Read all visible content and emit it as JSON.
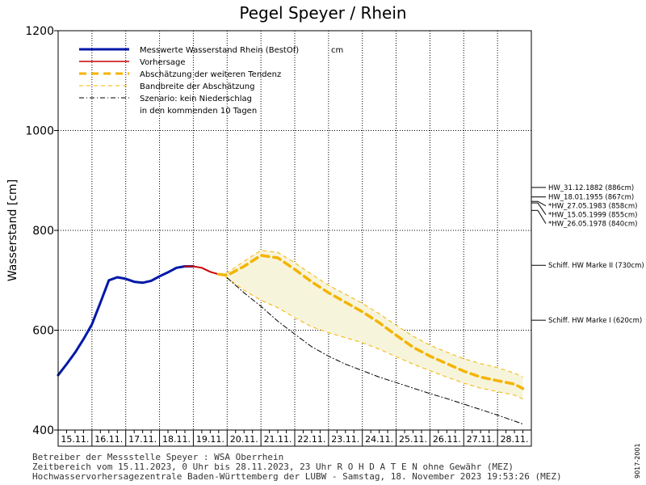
{
  "chart_data": {
    "type": "line",
    "title": "Pegel Speyer / Rhein",
    "ylabel": "Wasserstand [cm]",
    "xlabel": "",
    "ylim": [
      400,
      1200
    ],
    "xlim": [
      0,
      14
    ],
    "yticks": [
      400,
      600,
      800,
      1000,
      1200
    ],
    "grid": true,
    "legend_position": "top-left",
    "categories": [
      "15.11.",
      "16.11.",
      "17.11.",
      "18.11.",
      "19.11.",
      "20.11.",
      "21.11.",
      "22.11.",
      "23.11.",
      "24.11.",
      "25.11.",
      "26.11.",
      "27.11.",
      "28.11."
    ],
    "legend": [
      {
        "label": "Messwerte Wasserstand Rhein (BestOf)",
        "unit": "cm",
        "color": "#0018a8",
        "style": "thick"
      },
      {
        "label": "Vorhersage",
        "color": "#cc0000",
        "style": "solid"
      },
      {
        "label": "Abschätzung der weiteren Tendenz",
        "color": "#f4b400",
        "style": "thick-dash"
      },
      {
        "label": "Bandbreite der Abschätzung",
        "color": "#f4b400",
        "style": "thin-dash"
      },
      {
        "label": "Szenario: kein Niederschlag",
        "color": "#000000",
        "style": "dashdot"
      },
      {
        "label": "in den kommenden 10 Tagen",
        "color": "",
        "style": "none"
      }
    ],
    "series": [
      {
        "name": "Messwerte Wasserstand Rhein (BestOf)",
        "color": "#0018a8",
        "x": [
          0,
          0.25,
          0.5,
          0.75,
          1.0,
          1.25,
          1.5,
          1.75,
          2.0,
          2.25,
          2.5,
          2.75,
          3.0,
          3.25,
          3.5,
          3.75,
          4.0
        ],
        "y": [
          510,
          532,
          555,
          582,
          612,
          655,
          700,
          706,
          703,
          697,
          695,
          699,
          708,
          716,
          725,
          728,
          728
        ]
      },
      {
        "name": "Vorhersage",
        "color": "#cc0000",
        "x": [
          3.75,
          4.0,
          4.25,
          4.5,
          4.75
        ],
        "y": [
          728,
          728,
          725,
          717,
          712
        ]
      },
      {
        "name": "Abschätzung der weiteren Tendenz",
        "color": "#f4b400",
        "x": [
          4.75,
          5.0,
          5.5,
          6.0,
          6.5,
          7.0,
          7.5,
          8.0,
          8.5,
          9.0,
          9.5,
          10.0,
          10.5,
          11.0,
          11.5,
          12.0,
          12.5,
          13.0,
          13.5,
          13.75
        ],
        "y": [
          712,
          710,
          728,
          750,
          745,
          722,
          697,
          675,
          656,
          637,
          615,
          590,
          566,
          548,
          533,
          518,
          506,
          499,
          492,
          483
        ]
      },
      {
        "name": "Szenario: kein Niederschlag",
        "color": "#000000",
        "x": [
          5.0,
          5.5,
          6.0,
          6.5,
          7.0,
          7.5,
          8.0,
          8.5,
          9.0,
          9.5,
          10.0,
          10.5,
          11.0,
          11.5,
          12.0,
          12.5,
          13.0,
          13.5,
          13.75
        ],
        "y": [
          705,
          675,
          648,
          618,
          592,
          567,
          548,
          532,
          519,
          506,
          495,
          484,
          473,
          463,
          452,
          441,
          430,
          418,
          412
        ]
      }
    ],
    "band": {
      "name": "Bandbreite der Abschätzung",
      "x": [
        4.75,
        5.0,
        5.5,
        6.0,
        6.5,
        7.0,
        7.5,
        8.0,
        8.5,
        9.0,
        9.5,
        10.0,
        10.5,
        11.0,
        11.5,
        12.0,
        12.5,
        13.0,
        13.5,
        13.75
      ],
      "upper": [
        712,
        715,
        738,
        760,
        756,
        735,
        712,
        690,
        672,
        654,
        633,
        610,
        588,
        570,
        556,
        543,
        533,
        525,
        514,
        506
      ],
      "lower": [
        712,
        705,
        680,
        660,
        645,
        625,
        607,
        595,
        585,
        575,
        562,
        547,
        532,
        519,
        506,
        494,
        484,
        477,
        470,
        462
      ]
    },
    "reference_lines": [
      {
        "label": "HW_31.12.1882 (886cm)",
        "value": 886
      },
      {
        "label": "HW_18.01.1955 (867cm)",
        "value": 867
      },
      {
        "label": "*HW_27.05.1983 (858cm)",
        "value": 858
      },
      {
        "label": "*HW_15.05.1999 (855cm)",
        "value": 855
      },
      {
        "label": "*HW_26.05.1978 (840cm)",
        "value": 840
      },
      {
        "label": "Schiff. HW Marke II (730cm)",
        "value": 730
      },
      {
        "label": "Schiff. HW Marke I (620cm)",
        "value": 620
      }
    ]
  },
  "footer": {
    "line1": "Betreiber der Messstelle Speyer : WSA Oberrhein",
    "line2": "Zeitbereich vom 15.11.2023, 0 Uhr bis 28.11.2023, 23 Uhr   R O H D A T E N ohne Gewähr (MEZ)",
    "line3": "Hochwasservorhersagezentrale Baden-Württemberg der LUBW - Samstag, 18. November 2023 19:53:26 (MEZ)"
  },
  "side_code": "9017-2001"
}
